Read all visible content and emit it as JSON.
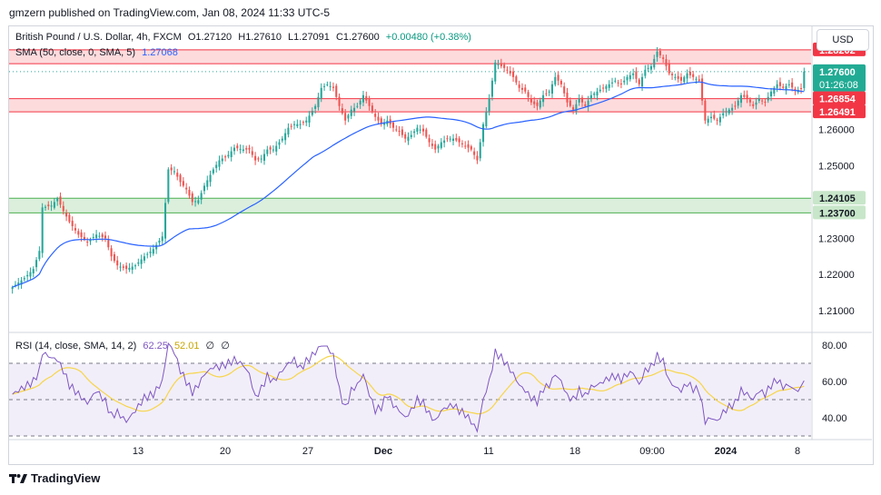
{
  "header": {
    "publisher": "gmzern published on TradingView.com, Jan 08, 2024 11:33 UTC-5"
  },
  "legend": {
    "symbol": "British Pound / U.S. Dollar, 4h, FXCM",
    "open": "O1.27120",
    "high": "H1.27610",
    "low": "L1.27091",
    "close": "C1.27600",
    "change": "+0.00480 (+0.38%)",
    "sma_label": "SMA (50, close, 0, SMA, 5)",
    "sma_value": "1.27068",
    "rsi_label": "RSI (14, close, SMA, 14, 2)",
    "rsi_value": "62.25",
    "rsi_ma_value": "52.01",
    "rsi_extra1": "∅",
    "rsi_extra2": "∅"
  },
  "currency_button": "USD",
  "footer": {
    "brand": "TradingView"
  },
  "colors": {
    "up": "#26a69a",
    "down": "#ef5350",
    "sma": "#2962ff",
    "rsi": "#7e57c2",
    "rsi_ma": "#f7d548",
    "resistance": "#f5aeb0",
    "support": "#a5d6a7"
  },
  "chart_data": {
    "type": "candlestick",
    "price_axis": {
      "ticks": [
        "1.21000",
        "1.22000",
        "1.23000",
        "1.25000",
        "1.26000"
      ],
      "ylim": [
        1.205,
        1.2885
      ]
    },
    "time_axis": {
      "ticks": [
        "13",
        "20",
        "27",
        "Dec",
        "11",
        "18",
        "09:00",
        "2024",
        "8"
      ]
    },
    "zones": [
      {
        "kind": "resistance",
        "from": 1.2782,
        "to": 1.28202
      },
      {
        "kind": "resistance",
        "from": 1.26491,
        "to": 1.26854
      },
      {
        "kind": "support",
        "from": 1.237,
        "to": 1.24105
      }
    ],
    "price_labels": [
      {
        "value": "1.28202",
        "style": "red"
      },
      {
        "value": "1.27600",
        "style": "green",
        "sub": "01:26:08"
      },
      {
        "value": "1.26854",
        "style": "red"
      },
      {
        "value": "1.26491",
        "style": "red"
      },
      {
        "value": "1.24105",
        "style": "green"
      },
      {
        "value": "1.23700",
        "style": "green"
      }
    ],
    "close_anchors": [
      [
        0,
        1.2165
      ],
      [
        4,
        1.219
      ],
      [
        7,
        1.2215
      ],
      [
        9,
        1.2265
      ],
      [
        10,
        1.2385
      ],
      [
        13,
        1.239
      ],
      [
        15,
        1.241
      ],
      [
        17,
        1.2375
      ],
      [
        19,
        1.2345
      ],
      [
        22,
        1.231
      ],
      [
        25,
        1.229
      ],
      [
        28,
        1.231
      ],
      [
        31,
        1.23
      ],
      [
        33,
        1.225
      ],
      [
        35,
        1.2225
      ],
      [
        38,
        1.2215
      ],
      [
        41,
        1.2225
      ],
      [
        44,
        1.225
      ],
      [
        47,
        1.227
      ],
      [
        50,
        1.2305
      ],
      [
        52,
        1.249
      ],
      [
        54,
        1.2485
      ],
      [
        56,
        1.2455
      ],
      [
        58,
        1.2435
      ],
      [
        60,
        1.24
      ],
      [
        62,
        1.2405
      ],
      [
        64,
        1.2445
      ],
      [
        67,
        1.249
      ],
      [
        69,
        1.2515
      ],
      [
        72,
        1.253
      ],
      [
        74,
        1.255
      ],
      [
        77,
        1.2545
      ],
      [
        79,
        1.2545
      ],
      [
        81,
        1.2515
      ],
      [
        83,
        1.252
      ],
      [
        85,
        1.2545
      ],
      [
        87,
        1.2545
      ],
      [
        90,
        1.2575
      ],
      [
        92,
        1.2605
      ],
      [
        94,
        1.2615
      ],
      [
        96,
        1.2615
      ],
      [
        98,
        1.2625
      ],
      [
        101,
        1.2665
      ],
      [
        103,
        1.2715
      ],
      [
        105,
        1.2725
      ],
      [
        107,
        1.2715
      ],
      [
        109,
        1.2665
      ],
      [
        111,
        1.2625
      ],
      [
        113,
        1.2655
      ],
      [
        115,
        1.2665
      ],
      [
        117,
        1.2695
      ],
      [
        119,
        1.2665
      ],
      [
        121,
        1.2635
      ],
      [
        123,
        1.2615
      ],
      [
        125,
        1.2625
      ],
      [
        127,
        1.2605
      ],
      [
        129,
        1.2595
      ],
      [
        131,
        1.2575
      ],
      [
        133,
        1.2585
      ],
      [
        135,
        1.2605
      ],
      [
        137,
        1.2595
      ],
      [
        139,
        1.2565
      ],
      [
        141,
        1.2545
      ],
      [
        143,
        1.2565
      ],
      [
        145,
        1.2575
      ],
      [
        147,
        1.2575
      ],
      [
        149,
        1.2565
      ],
      [
        151,
        1.2555
      ],
      [
        153,
        1.2545
      ],
      [
        155,
        1.2515
      ],
      [
        157,
        1.2615
      ],
      [
        159,
        1.2685
      ],
      [
        161,
        1.2785
      ],
      [
        163,
        1.2775
      ],
      [
        165,
        1.2765
      ],
      [
        167,
        1.2745
      ],
      [
        169,
        1.2715
      ],
      [
        171,
        1.2705
      ],
      [
        173,
        1.2675
      ],
      [
        175,
        1.2665
      ],
      [
        177,
        1.2695
      ],
      [
        179,
        1.2705
      ],
      [
        181,
        1.2745
      ],
      [
        183,
        1.2725
      ],
      [
        185,
        1.2675
      ],
      [
        187,
        1.2655
      ],
      [
        189,
        1.2685
      ],
      [
        191,
        1.2665
      ],
      [
        193,
        1.2695
      ],
      [
        195,
        1.2705
      ],
      [
        197,
        1.2715
      ],
      [
        199,
        1.2725
      ],
      [
        201,
        1.2735
      ],
      [
        203,
        1.2725
      ],
      [
        205,
        1.2745
      ],
      [
        207,
        1.2755
      ],
      [
        209,
        1.2725
      ],
      [
        211,
        1.2765
      ],
      [
        213,
        1.2775
      ],
      [
        215,
        1.2815
      ],
      [
        217,
        1.2795
      ],
      [
        219,
        1.2755
      ],
      [
        221,
        1.2745
      ],
      [
        223,
        1.2735
      ],
      [
        225,
        1.2755
      ],
      [
        227,
        1.2745
      ],
      [
        229,
        1.2735
      ],
      [
        231,
        1.2625
      ],
      [
        233,
        1.2635
      ],
      [
        235,
        1.2625
      ],
      [
        237,
        1.2645
      ],
      [
        239,
        1.2655
      ],
      [
        241,
        1.2665
      ],
      [
        243,
        1.2695
      ],
      [
        245,
        1.2685
      ],
      [
        247,
        1.2665
      ],
      [
        249,
        1.2685
      ],
      [
        251,
        1.2675
      ],
      [
        253,
        1.2705
      ],
      [
        255,
        1.2725
      ],
      [
        257,
        1.2715
      ],
      [
        259,
        1.2725
      ],
      [
        261,
        1.2707
      ],
      [
        263,
        1.2712
      ],
      [
        264,
        1.276
      ]
    ],
    "rsi": {
      "yticks": [
        "80.00",
        "60.00",
        "40.00"
      ],
      "ylim": [
        28,
        86
      ],
      "bands": [
        70,
        50,
        30
      ],
      "anchors": [
        [
          0,
          53
        ],
        [
          4,
          57
        ],
        [
          7,
          60
        ],
        [
          9,
          66
        ],
        [
          10,
          76
        ],
        [
          13,
          73
        ],
        [
          15,
          72
        ],
        [
          17,
          66
        ],
        [
          19,
          58
        ],
        [
          22,
          53
        ],
        [
          25,
          48
        ],
        [
          28,
          55
        ],
        [
          31,
          49
        ],
        [
          33,
          41
        ],
        [
          35,
          43
        ],
        [
          38,
          38
        ],
        [
          41,
          44
        ],
        [
          44,
          51
        ],
        [
          47,
          53
        ],
        [
          50,
          60
        ],
        [
          52,
          81
        ],
        [
          54,
          76
        ],
        [
          56,
          66
        ],
        [
          58,
          60
        ],
        [
          60,
          54
        ],
        [
          62,
          58
        ],
        [
          64,
          64
        ],
        [
          67,
          68
        ],
        [
          69,
          68
        ],
        [
          72,
          70
        ],
        [
          74,
          72
        ],
        [
          77,
          69
        ],
        [
          79,
          64
        ],
        [
          81,
          51
        ],
        [
          83,
          56
        ],
        [
          85,
          63
        ],
        [
          87,
          60
        ],
        [
          90,
          66
        ],
        [
          92,
          70
        ],
        [
          94,
          72
        ],
        [
          96,
          67
        ],
        [
          98,
          71
        ],
        [
          101,
          76
        ],
        [
          103,
          80
        ],
        [
          105,
          79
        ],
        [
          107,
          74
        ],
        [
          109,
          55
        ],
        [
          111,
          45
        ],
        [
          113,
          55
        ],
        [
          115,
          58
        ],
        [
          117,
          64
        ],
        [
          119,
          53
        ],
        [
          121,
          44
        ],
        [
          123,
          46
        ],
        [
          125,
          53
        ],
        [
          127,
          47
        ],
        [
          129,
          44
        ],
        [
          131,
          40
        ],
        [
          133,
          44
        ],
        [
          135,
          50
        ],
        [
          137,
          48
        ],
        [
          139,
          42
        ],
        [
          141,
          38
        ],
        [
          143,
          44
        ],
        [
          145,
          46
        ],
        [
          147,
          47
        ],
        [
          149,
          44
        ],
        [
          151,
          42
        ],
        [
          153,
          38
        ],
        [
          155,
          33
        ],
        [
          157,
          50
        ],
        [
          159,
          60
        ],
        [
          161,
          76
        ],
        [
          163,
          73
        ],
        [
          165,
          69
        ],
        [
          167,
          64
        ],
        [
          169,
          58
        ],
        [
          171,
          55
        ],
        [
          173,
          51
        ],
        [
          175,
          49
        ],
        [
          177,
          56
        ],
        [
          179,
          58
        ],
        [
          181,
          64
        ],
        [
          183,
          60
        ],
        [
          185,
          52
        ],
        [
          187,
          50
        ],
        [
          189,
          55
        ],
        [
          191,
          52
        ],
        [
          193,
          57
        ],
        [
          195,
          58
        ],
        [
          197,
          60
        ],
        [
          199,
          62
        ],
        [
          201,
          63
        ],
        [
          203,
          61
        ],
        [
          205,
          64
        ],
        [
          207,
          65
        ],
        [
          209,
          58
        ],
        [
          211,
          66
        ],
        [
          213,
          68
        ],
        [
          215,
          74
        ],
        [
          217,
          71
        ],
        [
          219,
          60
        ],
        [
          221,
          57
        ],
        [
          223,
          55
        ],
        [
          225,
          59
        ],
        [
          227,
          56
        ],
        [
          229,
          55
        ],
        [
          231,
          38
        ],
        [
          233,
          40
        ],
        [
          235,
          38
        ],
        [
          237,
          43
        ],
        [
          239,
          46
        ],
        [
          241,
          48
        ],
        [
          243,
          55
        ],
        [
          245,
          53
        ],
        [
          247,
          50
        ],
        [
          249,
          55
        ],
        [
          251,
          53
        ],
        [
          253,
          58
        ],
        [
          255,
          61
        ],
        [
          257,
          57
        ],
        [
          259,
          58
        ],
        [
          261,
          55
        ],
        [
          263,
          56
        ],
        [
          264,
          62.25
        ]
      ]
    }
  }
}
